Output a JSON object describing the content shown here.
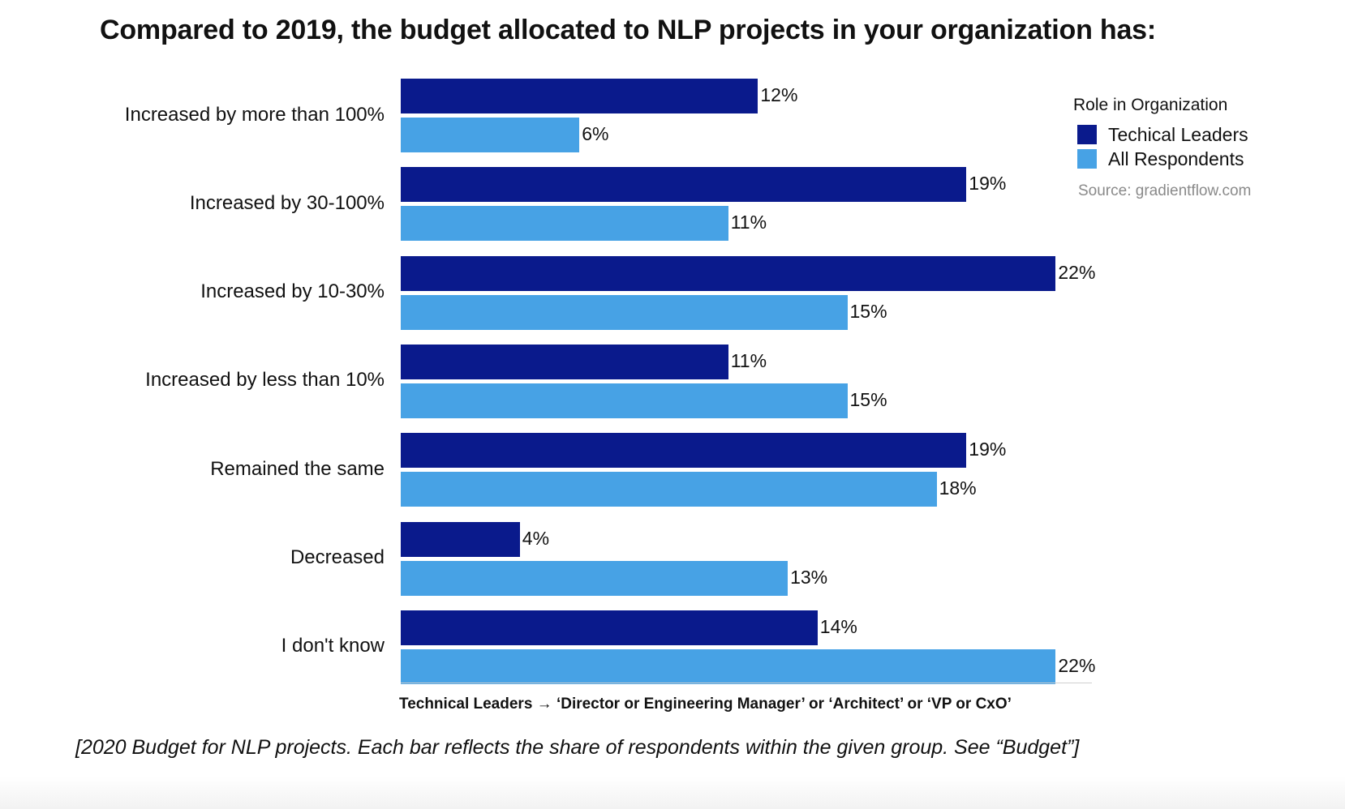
{
  "colors": {
    "technical_leaders": "#0a1a8c",
    "all_respondents": "#47a2e5"
  },
  "chart_data": {
    "type": "bar",
    "orientation": "horizontal",
    "title": "Compared to 2019, the budget allocated to NLP projects in your organization has:",
    "categories": [
      "Increased by more than 100%",
      "Increased by 30-100%",
      "Increased by 10-30%",
      "Increased by less than 10%",
      "Remained the same",
      "Decreased",
      "I don't know"
    ],
    "series": [
      {
        "name": "Techical Leaders",
        "values": [
          12,
          19,
          22,
          11,
          19,
          4,
          14
        ],
        "labels": [
          "12%",
          "19%",
          "22%",
          "11%",
          "19%",
          "4%",
          "14%"
        ]
      },
      {
        "name": "All Respondents",
        "values": [
          6,
          11,
          15,
          15,
          18,
          13,
          22
        ],
        "labels": [
          "6%",
          "11%",
          "15%",
          "15%",
          "18%",
          "13%",
          "22%"
        ]
      }
    ],
    "xlim": [
      0,
      22.5
    ],
    "grid": false,
    "legend": {
      "title": "Role in Organization",
      "placement": "top-right"
    },
    "source": "Source: gradientflow.com",
    "note": "Technical Leaders → ‘Director or Engineering Manager’  or  ‘Architect’  or  ‘VP or CxO’"
  },
  "caption": "[2020 Budget for NLP projects. Each bar reflects the share of respondents within the given group. See “Budget”]"
}
